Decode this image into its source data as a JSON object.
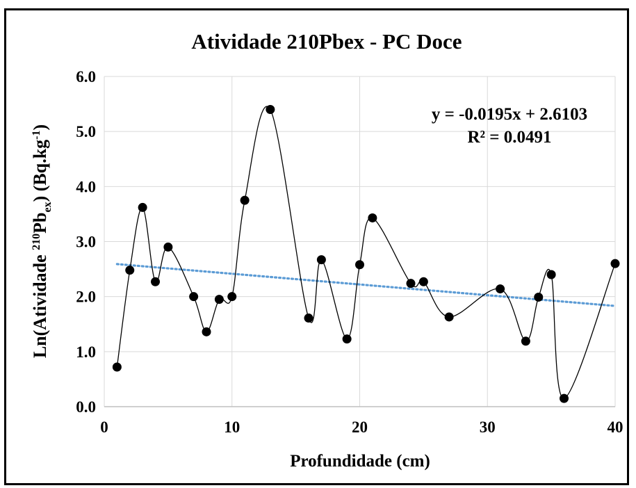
{
  "chart_data": {
    "type": "scatter",
    "title": "Atividade 210Pbex - PC Doce",
    "xlabel": "Profundidade (cm)",
    "ylabel": {
      "prefix": "Ln(Atividade ",
      "sup1": "210",
      "mid": "Pb",
      "sub1": "ex",
      "after": ") (Bq.kg",
      "sup2": "-1",
      "suffix": ")"
    },
    "xlim": [
      0,
      40
    ],
    "ylim": [
      0.0,
      6.0
    ],
    "x_ticks": [
      "0",
      "10",
      "20",
      "30",
      "40"
    ],
    "y_ticks": [
      "0.0",
      "1.0",
      "2.0",
      "3.0",
      "4.0",
      "5.0",
      "6.0"
    ],
    "grid": true,
    "series": [
      {
        "style": "markers with smoothed line",
        "color": "#000000",
        "x": [
          1,
          2,
          3,
          4,
          5,
          7,
          8,
          9,
          10,
          11,
          13,
          16,
          17,
          19,
          20,
          21,
          24,
          25,
          27,
          31,
          33,
          34,
          35,
          36,
          40
        ],
        "y": [
          0.72,
          2.48,
          3.62,
          2.27,
          2.9,
          2.0,
          1.36,
          1.95,
          2.0,
          3.75,
          5.4,
          1.61,
          2.67,
          1.23,
          2.58,
          3.43,
          2.24,
          2.27,
          1.63,
          2.14,
          1.19,
          1.99,
          2.4,
          0.15,
          2.6
        ]
      }
    ],
    "trendline": {
      "type": "linear",
      "color": "#5b9bd5",
      "slope": -0.0195,
      "intercept": 2.6103,
      "x_range": [
        1,
        40
      ],
      "equation": "y = -0.0195x + 2.6103",
      "r2": "R² = 0.0491"
    }
  }
}
